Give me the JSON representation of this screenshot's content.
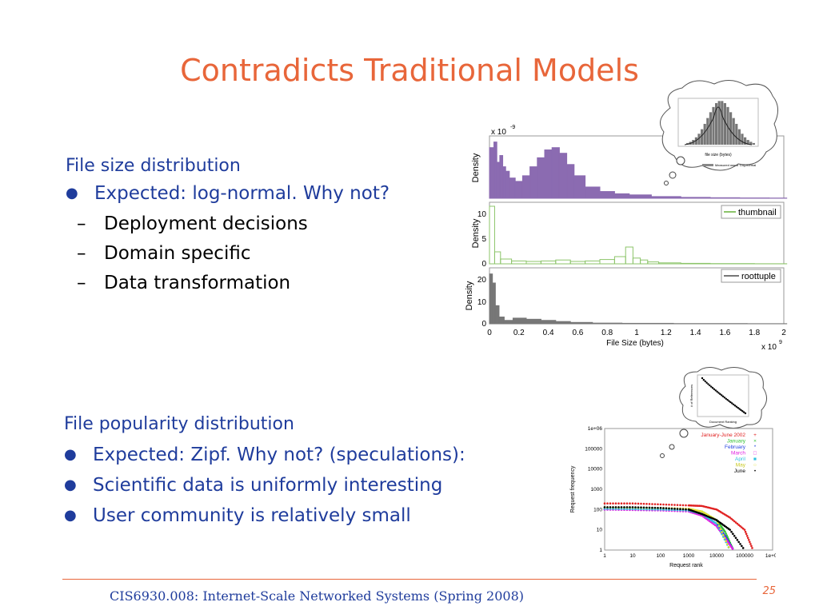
{
  "slide": {
    "title": "Contradicts Traditional Models",
    "section1": {
      "heading": "File size distribution",
      "bullet": "Expected: log-normal. Why not?",
      "subitems": [
        "Deployment decisions",
        "Domain specific",
        "Data transformation"
      ]
    },
    "section2": {
      "heading": "File popularity distribution",
      "bullets": [
        "Expected: Zipf. Why not? (speculations):",
        "Scientific data is uniformly interesting",
        "User community is relatively small"
      ]
    },
    "footer": "CIS6930.008: Internet-Scale Networked Systems (Spring 2008)",
    "page_number": "25"
  },
  "chart_data": [
    {
      "type": "bar",
      "panel": "top",
      "ylabel": "Density",
      "y_scale_label": "x 10",
      "y_scale_exp": "-9",
      "color": "#8b6bb1",
      "x": [
        0.02,
        0.04,
        0.06,
        0.08,
        0.1,
        0.12,
        0.15,
        0.2,
        0.25,
        0.3,
        0.35,
        0.4,
        0.45,
        0.5,
        0.55,
        0.6,
        0.7,
        0.8,
        0.9,
        1.0,
        1.2,
        1.4,
        1.6,
        1.8,
        2.0
      ],
      "values": [
        4.5,
        5.0,
        3.2,
        3.8,
        2.8,
        2.4,
        1.8,
        1.5,
        2.0,
        2.8,
        3.6,
        4.3,
        4.5,
        4.0,
        3.0,
        2.0,
        1.0,
        0.6,
        0.4,
        0.3,
        0.15,
        0.08,
        0.05,
        0.03,
        0.02
      ]
    },
    {
      "type": "bar",
      "panel": "middle",
      "ylabel": "Density",
      "yticks": [
        "10",
        "5",
        "0"
      ],
      "legend": "thumbnail",
      "color": "#8cc46a",
      "x": [
        0.02,
        0.05,
        0.1,
        0.2,
        0.3,
        0.4,
        0.5,
        0.6,
        0.7,
        0.8,
        0.9,
        0.95,
        1.0,
        1.05,
        1.1,
        1.2,
        1.4,
        1.6,
        2.0
      ],
      "values": [
        12,
        2.5,
        1.0,
        0.6,
        0.5,
        0.6,
        0.8,
        0.5,
        0.6,
        0.9,
        1.5,
        3.5,
        1.2,
        0.8,
        0.4,
        0.2,
        0.1,
        0.05,
        0.02
      ]
    },
    {
      "type": "bar",
      "panel": "bottom",
      "ylabel": "Density",
      "yticks": [
        "20",
        "10",
        "0"
      ],
      "legend": "roottuple",
      "color": "#777777",
      "xlabel": "File Size (bytes)",
      "xticks": [
        "0",
        "0.2",
        "0.4",
        "0.6",
        "0.8",
        "1",
        "1.2",
        "1.4",
        "1.6",
        "1.8",
        "2"
      ],
      "x_scale_label": "x 10",
      "x_scale_exp": "9",
      "x": [
        0.01,
        0.03,
        0.05,
        0.08,
        0.12,
        0.2,
        0.3,
        0.4,
        0.5,
        0.6,
        0.8,
        1.0,
        1.5,
        2.0
      ],
      "values": [
        22,
        18,
        8,
        3,
        1.5,
        2.5,
        2.0,
        1.5,
        1.0,
        0.6,
        0.3,
        0.2,
        0.1,
        0.05
      ]
    },
    {
      "type": "scatter",
      "panel": "popularity",
      "xlabel": "Request rank",
      "ylabel": "Request frequency",
      "x_scale": "log",
      "y_scale": "log",
      "xticks": [
        "1",
        "10",
        "100",
        "1000",
        "10000",
        "100000",
        "1e+06"
      ],
      "yticks": [
        "1e+06",
        "100000",
        "10000",
        "1000",
        "100",
        "10",
        "1"
      ],
      "series": [
        {
          "name": "January-June 2002",
          "color": "#e02020",
          "marker": "+",
          "x": [
            1,
            10,
            100,
            1000,
            3000,
            10000,
            30000,
            100000,
            200000
          ],
          "y": [
            200,
            200,
            180,
            160,
            150,
            100,
            40,
            10,
            1
          ]
        },
        {
          "name": "January",
          "color": "#30c030",
          "marker": "×",
          "x": [
            1,
            10,
            100,
            1000,
            3000,
            10000,
            20000,
            40000
          ],
          "y": [
            120,
            120,
            110,
            100,
            80,
            30,
            8,
            1
          ]
        },
        {
          "name": "February",
          "color": "#2040e0",
          "marker": "*",
          "x": [
            1,
            10,
            100,
            1000,
            3000,
            10000,
            20000,
            40000
          ],
          "y": [
            100,
            100,
            95,
            90,
            60,
            20,
            5,
            1
          ]
        },
        {
          "name": "March",
          "color": "#e020e0",
          "marker": "□",
          "x": [
            1,
            10,
            100,
            1000,
            3000,
            10000,
            20000,
            40000
          ],
          "y": [
            100,
            95,
            90,
            80,
            50,
            15,
            4,
            1
          ]
        },
        {
          "name": "April",
          "color": "#30c0e0",
          "marker": "■",
          "x": [
            1,
            10,
            100,
            1000,
            3000,
            10000,
            30000
          ],
          "y": [
            110,
            105,
            100,
            90,
            60,
            20,
            1
          ]
        },
        {
          "name": "May",
          "color": "#e0e030",
          "marker": "○",
          "x": [
            1,
            10,
            100,
            1000,
            3000,
            10000,
            30000
          ],
          "y": [
            130,
            125,
            120,
            110,
            80,
            30,
            1
          ]
        },
        {
          "name": "June",
          "color": "#000000",
          "marker": "•",
          "x": [
            1,
            10,
            100,
            1000,
            3000,
            10000,
            30000,
            100000
          ],
          "y": [
            130,
            130,
            120,
            100,
            60,
            30,
            10,
            1
          ]
        }
      ]
    }
  ],
  "thought_bubbles": {
    "top": {
      "axis_label": "file size (bytes)",
      "legend": [
        "Measured",
        "Log-normal"
      ]
    },
    "bottom": {
      "axis_label": "Document Ranking",
      "ylabel": "# of References"
    }
  }
}
